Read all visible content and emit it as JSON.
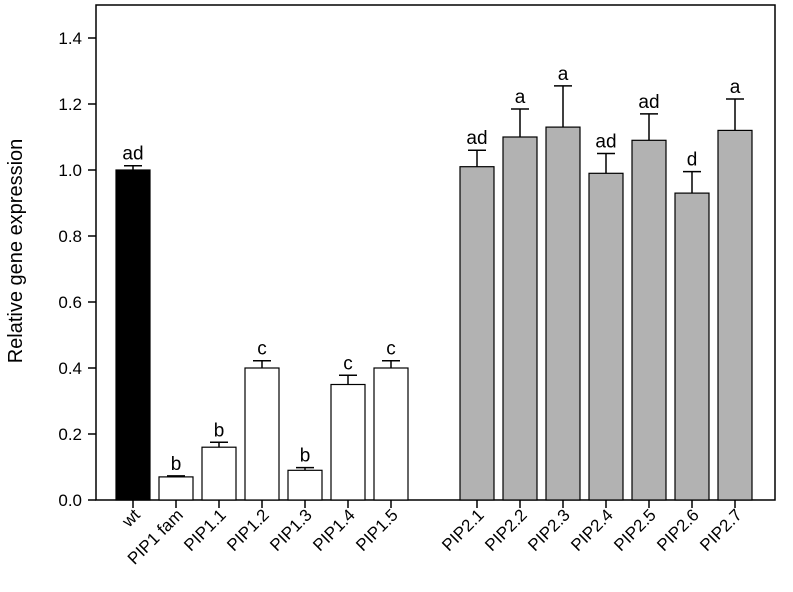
{
  "chart_data": {
    "type": "bar",
    "title": "",
    "xlabel": "",
    "ylabel": "Relative gene expression",
    "ylim": [
      0,
      1.5
    ],
    "yticks": [
      0.0,
      0.2,
      0.4,
      0.6,
      0.8,
      1.0,
      1.2,
      1.4
    ],
    "ytick_labels": [
      "0.0",
      "0.2",
      "0.4",
      "0.6",
      "0.8",
      "1.0",
      "1.2",
      "1.4"
    ],
    "grid": false,
    "legend": "none",
    "categories": [
      "wt",
      "PIP1 fam",
      "PIP1.1",
      "PIP1.2",
      "PIP1.3",
      "PIP1.4",
      "PIP1.5",
      "PIP2.1",
      "PIP2.2",
      "PIP2.3",
      "PIP2.4",
      "PIP2.5",
      "PIP2.6",
      "PIP2.7"
    ],
    "values": [
      1.0,
      0.07,
      0.16,
      0.4,
      0.09,
      0.35,
      0.4,
      1.01,
      1.1,
      1.13,
      0.99,
      1.09,
      0.93,
      1.12
    ],
    "errors": [
      0.013,
      0.003,
      0.015,
      0.022,
      0.008,
      0.028,
      0.022,
      0.05,
      0.085,
      0.125,
      0.06,
      0.08,
      0.065,
      0.095
    ],
    "significance": [
      "ad",
      "b",
      "b",
      "c",
      "b",
      "c",
      "c",
      "ad",
      "a",
      "a",
      "ad",
      "ad",
      "d",
      "a"
    ],
    "groups": [
      "wt",
      "pip1",
      "pip1",
      "pip1",
      "pip1",
      "pip1",
      "pip1",
      "pip2",
      "pip2",
      "pip2",
      "pip2",
      "pip2",
      "pip2",
      "pip2"
    ],
    "colors": {
      "wt": "#000000",
      "pip1": "#ffffff",
      "pip2": "#b2b2b2",
      "stroke": "#000000"
    }
  }
}
